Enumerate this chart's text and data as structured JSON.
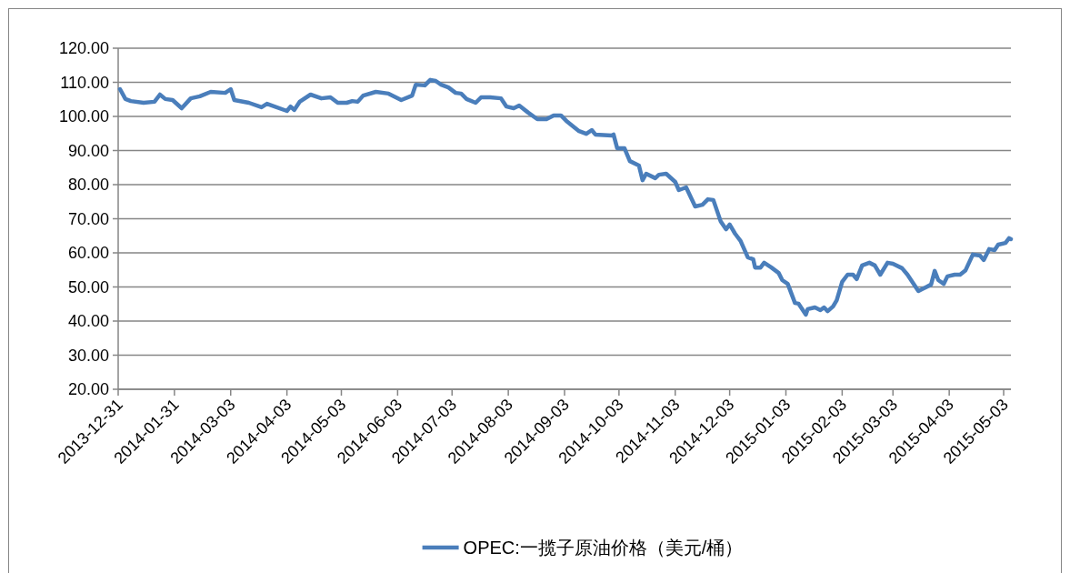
{
  "chart_data": {
    "type": "line",
    "grid": "y",
    "legend": "bottom",
    "marker": "none",
    "line_style": "solid",
    "ylim": [
      20,
      120
    ],
    "yticks": [
      {
        "value": 20,
        "label": "20.00"
      },
      {
        "value": 30,
        "label": "30.00"
      },
      {
        "value": 40,
        "label": "40.00"
      },
      {
        "value": 50,
        "label": "50.00"
      },
      {
        "value": 60,
        "label": "60.00"
      },
      {
        "value": 70,
        "label": "70.00"
      },
      {
        "value": 80,
        "label": "80.00"
      },
      {
        "value": 90,
        "label": "90.00"
      },
      {
        "value": 100,
        "label": "100.00"
      },
      {
        "value": 110,
        "label": "110.00"
      },
      {
        "value": 120,
        "label": "120.00"
      }
    ],
    "xlim": [
      "2013-12-31",
      "2015-05-07"
    ],
    "xticks": [
      "2013-12-31",
      "2014-01-31",
      "2014-03-03",
      "2014-04-03",
      "2014-05-03",
      "2014-06-03",
      "2014-07-03",
      "2014-08-03",
      "2014-09-03",
      "2014-10-03",
      "2014-11-03",
      "2014-12-03",
      "2015-01-03",
      "2015-02-03",
      "2015-03-03",
      "2015-04-03",
      "2015-05-03"
    ],
    "x": [
      "2014-01-01",
      "2014-01-04",
      "2014-01-07",
      "2014-01-14",
      "2014-01-20",
      "2014-01-23",
      "2014-01-26",
      "2014-01-30",
      "2014-02-04",
      "2014-02-09",
      "2014-02-14",
      "2014-02-20",
      "2014-02-28",
      "2014-03-03",
      "2014-03-05",
      "2014-03-13",
      "2014-03-20",
      "2014-03-23",
      "2014-04-03",
      "2014-04-05",
      "2014-04-07",
      "2014-04-10",
      "2014-04-16",
      "2014-04-22",
      "2014-04-27",
      "2014-05-01",
      "2014-05-06",
      "2014-05-09",
      "2014-05-12",
      "2014-05-15",
      "2014-05-22",
      "2014-05-29",
      "2014-06-05",
      "2014-06-11",
      "2014-06-13",
      "2014-06-18",
      "2014-06-21",
      "2014-06-24",
      "2014-06-27",
      "2014-07-01",
      "2014-07-05",
      "2014-07-08",
      "2014-07-11",
      "2014-07-16",
      "2014-07-19",
      "2014-07-24",
      "2014-07-30",
      "2014-08-02",
      "2014-08-06",
      "2014-08-09",
      "2014-08-14",
      "2014-08-19",
      "2014-08-24",
      "2014-08-28",
      "2014-09-01",
      "2014-09-04",
      "2014-09-11",
      "2014-09-15",
      "2014-09-18",
      "2014-09-20",
      "2014-09-29",
      "2014-09-30",
      "2014-10-02",
      "2014-10-06",
      "2014-10-09",
      "2014-10-14",
      "2014-10-16",
      "2014-10-18",
      "2014-10-23",
      "2014-10-25",
      "2014-10-29",
      "2014-11-03",
      "2014-11-05",
      "2014-11-09",
      "2014-11-14",
      "2014-11-18",
      "2014-11-21",
      "2014-11-24",
      "2014-11-28",
      "2014-12-01",
      "2014-12-03",
      "2014-12-06",
      "2014-12-09",
      "2014-12-13",
      "2014-12-16",
      "2014-12-17",
      "2014-12-20",
      "2014-12-22",
      "2014-12-26",
      "2014-12-30",
      "2015-01-01",
      "2015-01-04",
      "2015-01-08",
      "2015-01-10",
      "2015-01-14",
      "2015-01-15",
      "2015-01-19",
      "2015-01-22",
      "2015-01-24",
      "2015-01-26",
      "2015-01-29",
      "2015-01-31",
      "2015-02-03",
      "2015-02-06",
      "2015-02-09",
      "2015-02-11",
      "2015-02-14",
      "2015-02-18",
      "2015-02-21",
      "2015-02-24",
      "2015-02-28",
      "2015-03-03",
      "2015-03-08",
      "2015-03-11",
      "2015-03-17",
      "2015-03-21",
      "2015-03-24",
      "2015-03-26",
      "2015-03-28",
      "2015-03-31",
      "2015-04-02",
      "2015-04-06",
      "2015-04-09",
      "2015-04-12",
      "2015-04-16",
      "2015-04-20",
      "2015-04-22",
      "2015-04-25",
      "2015-04-28",
      "2015-04-30",
      "2015-05-04",
      "2015-05-06",
      "2015-05-07"
    ],
    "series": [
      {
        "name": "OPEC:一揽子原油价格（美元/桶）",
        "color": "#4a7ebb",
        "values": [
          108.0,
          105.1,
          104.5,
          104.0,
          104.3,
          106.4,
          105.1,
          104.8,
          102.4,
          105.3,
          105.9,
          107.2,
          106.9,
          108.0,
          104.8,
          104.0,
          102.7,
          103.7,
          101.6,
          102.9,
          101.9,
          104.3,
          106.4,
          105.3,
          105.6,
          104.0,
          104.0,
          104.5,
          104.3,
          106.1,
          107.2,
          106.7,
          104.8,
          106.1,
          109.3,
          109.1,
          110.7,
          110.4,
          109.3,
          108.5,
          106.9,
          106.7,
          105.1,
          104.0,
          105.6,
          105.6,
          105.3,
          102.9,
          102.4,
          103.2,
          101.1,
          99.2,
          99.2,
          100.3,
          100.3,
          98.7,
          95.7,
          94.9,
          96.0,
          94.7,
          94.4,
          94.7,
          90.7,
          90.7,
          86.9,
          85.6,
          81.3,
          83.2,
          81.9,
          82.9,
          83.2,
          80.8,
          78.4,
          79.2,
          73.6,
          74.1,
          75.7,
          75.5,
          69.3,
          66.9,
          68.3,
          65.6,
          63.5,
          58.7,
          58.1,
          55.7,
          55.7,
          57.1,
          55.7,
          54.1,
          52.0,
          50.9,
          45.3,
          45.1,
          41.9,
          43.5,
          44.0,
          43.2,
          44.0,
          42.9,
          44.3,
          46.1,
          51.5,
          53.6,
          53.6,
          52.3,
          56.3,
          57.1,
          56.3,
          53.6,
          57.1,
          56.8,
          55.5,
          53.6,
          48.8,
          49.9,
          50.7,
          54.7,
          52.0,
          50.9,
          53.1,
          53.6,
          53.6,
          54.9,
          59.5,
          59.2,
          57.9,
          61.1,
          60.8,
          62.4,
          62.9,
          64.3,
          64.0
        ]
      }
    ]
  }
}
